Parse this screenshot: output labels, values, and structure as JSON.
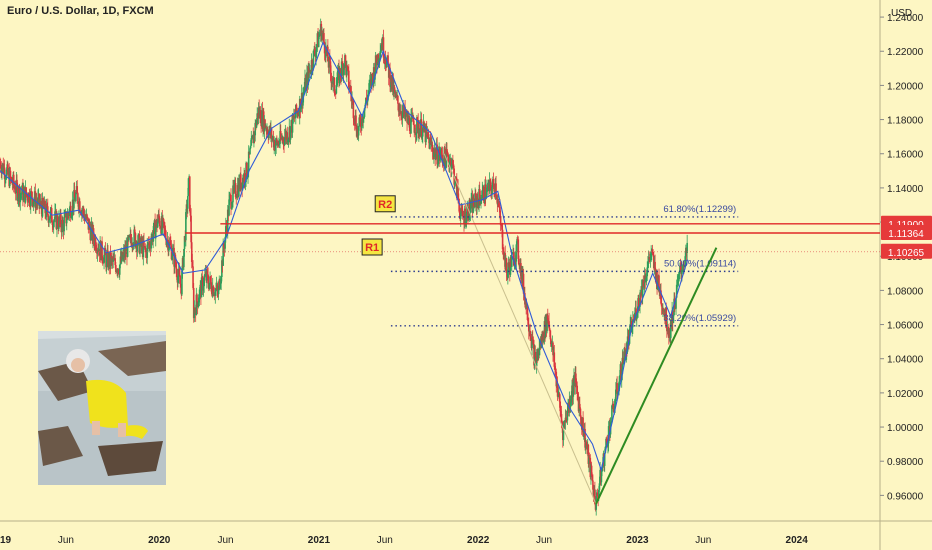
{
  "title": "Euro / U.S. Dollar, 1D, FXCM",
  "colors": {
    "background": "#fdf6c3",
    "up_candle": "#2e9e5b",
    "down_candle": "#d9363e",
    "ma_line": "#2f5bd8",
    "resistance": "#e02828",
    "fib": "#2b3a8f",
    "trendline": "#2e8b22",
    "price_tag": "#e63a3a"
  },
  "chart_data": {
    "type": "line",
    "title": "Euro / U.S. Dollar, 1D, FXCM",
    "ylabel": "USD",
    "ylim": [
      0.945,
      1.25
    ],
    "y_ticks": [
      0.96,
      0.98,
      1.0,
      1.02,
      1.04,
      1.06,
      1.08,
      1.1,
      1.12,
      1.14,
      1.16,
      1.18,
      1.2,
      1.22,
      1.24
    ],
    "y_tick_labels": [
      "0.96000",
      "0.98000",
      "1.00000",
      "1.02000",
      "1.04000",
      "1.06000",
      "1.08000",
      "1.10000",
      "1.12000",
      "1.14000",
      "1.16000",
      "1.18000",
      "1.20000",
      "1.22000",
      "1.24000"
    ],
    "x_range": [
      "2019-01-01",
      "2024-07-10"
    ],
    "x_ticks": [
      {
        "date": "2019-01-01",
        "label": "19"
      },
      {
        "date": "2019-06-01",
        "label": "Jun"
      },
      {
        "date": "2020-01-01",
        "label": "2020"
      },
      {
        "date": "2020-06-01",
        "label": "Jun"
      },
      {
        "date": "2021-01-01",
        "label": "2021"
      },
      {
        "date": "2021-06-01",
        "label": "Jun"
      },
      {
        "date": "2022-01-01",
        "label": "2022"
      },
      {
        "date": "2022-06-01",
        "label": "Jun"
      },
      {
        "date": "2023-01-01",
        "label": "2023"
      },
      {
        "date": "2023-06-01",
        "label": "Jun"
      },
      {
        "date": "2024-01-01",
        "label": "2024"
      }
    ],
    "series": [
      {
        "type": "candlestick-approx",
        "points": [
          [
            "2019-01-01",
            1.155
          ],
          [
            "2019-02-10",
            1.138
          ],
          [
            "2019-03-15",
            1.135
          ],
          [
            "2019-04-20",
            1.125
          ],
          [
            "2019-05-25",
            1.118
          ],
          [
            "2019-06-25",
            1.136
          ],
          [
            "2019-08-01",
            1.112
          ],
          [
            "2019-09-01",
            1.098
          ],
          [
            "2019-10-01",
            1.094
          ],
          [
            "2019-11-01",
            1.112
          ],
          [
            "2019-12-01",
            1.102
          ],
          [
            "2019-12-31",
            1.122
          ],
          [
            "2020-02-01",
            1.102
          ],
          [
            "2020-02-20",
            1.081
          ],
          [
            "2020-03-09",
            1.145
          ],
          [
            "2020-03-20",
            1.068
          ],
          [
            "2020-04-15",
            1.088
          ],
          [
            "2020-05-15",
            1.078
          ],
          [
            "2020-06-10",
            1.132
          ],
          [
            "2020-07-20",
            1.15
          ],
          [
            "2020-08-15",
            1.185
          ],
          [
            "2020-09-25",
            1.165
          ],
          [
            "2020-10-25",
            1.173
          ],
          [
            "2020-11-20",
            1.19
          ],
          [
            "2021-01-06",
            1.233
          ],
          [
            "2021-02-05",
            1.198
          ],
          [
            "2021-03-01",
            1.215
          ],
          [
            "2021-03-31",
            1.172
          ],
          [
            "2021-05-25",
            1.226
          ],
          [
            "2021-06-25",
            1.192
          ],
          [
            "2021-07-25",
            1.178
          ],
          [
            "2021-08-25",
            1.175
          ],
          [
            "2021-09-25",
            1.16
          ],
          [
            "2021-11-01",
            1.156
          ],
          [
            "2021-11-24",
            1.122
          ],
          [
            "2021-12-20",
            1.13
          ],
          [
            "2022-01-10",
            1.136
          ],
          [
            "2022-02-10",
            1.142
          ],
          [
            "2022-03-07",
            1.09
          ],
          [
            "2022-04-01",
            1.105
          ],
          [
            "2022-05-12",
            1.037
          ],
          [
            "2022-06-10",
            1.065
          ],
          [
            "2022-07-14",
            0.998
          ],
          [
            "2022-08-10",
            1.028
          ],
          [
            "2022-09-05",
            0.99
          ],
          [
            "2022-09-28",
            0.955
          ],
          [
            "2022-10-25",
            0.995
          ],
          [
            "2022-11-30",
            1.04
          ],
          [
            "2022-12-31",
            1.07
          ],
          [
            "2023-02-01",
            1.102
          ],
          [
            "2023-03-15",
            1.055
          ],
          [
            "2023-04-10",
            1.092
          ],
          [
            "2023-04-26",
            1.1026
          ]
        ]
      },
      {
        "type": "moving-average",
        "points": [
          [
            "2019-01-01",
            1.15
          ],
          [
            "2019-03-01",
            1.137
          ],
          [
            "2019-05-01",
            1.124
          ],
          [
            "2019-07-01",
            1.127
          ],
          [
            "2019-09-01",
            1.102
          ],
          [
            "2019-11-01",
            1.106
          ],
          [
            "2020-01-10",
            1.113
          ],
          [
            "2020-02-25",
            1.09
          ],
          [
            "2020-04-15",
            1.092
          ],
          [
            "2020-06-01",
            1.11
          ],
          [
            "2020-07-25",
            1.15
          ],
          [
            "2020-09-15",
            1.175
          ],
          [
            "2020-11-15",
            1.185
          ],
          [
            "2021-01-10",
            1.225
          ],
          [
            "2021-03-05",
            1.2
          ],
          [
            "2021-04-10",
            1.182
          ],
          [
            "2021-05-28",
            1.22
          ],
          [
            "2021-07-20",
            1.185
          ],
          [
            "2021-09-15",
            1.172
          ],
          [
            "2021-11-20",
            1.13
          ],
          [
            "2022-01-10",
            1.133
          ],
          [
            "2022-02-15",
            1.138
          ],
          [
            "2022-03-20",
            1.1
          ],
          [
            "2022-05-15",
            1.055
          ],
          [
            "2022-07-20",
            1.015
          ],
          [
            "2022-09-20",
            0.99
          ],
          [
            "2022-10-10",
            0.975
          ],
          [
            "2022-11-15",
            1.015
          ],
          [
            "2022-12-20",
            1.06
          ],
          [
            "2023-02-05",
            1.09
          ],
          [
            "2023-03-18",
            1.065
          ],
          [
            "2023-04-26",
            1.098
          ]
        ]
      }
    ],
    "resistance_lines": [
      {
        "label": "R1",
        "value": 1.1136,
        "from": "2020-03-01"
      },
      {
        "label": "R2",
        "value": 1.119,
        "from": "2020-05-20"
      }
    ],
    "fib_levels": [
      {
        "label": "61.80%(1.12299)",
        "value": 1.12299
      },
      {
        "label": "50.00%(1.09114)",
        "value": 1.09114
      },
      {
        "label": "38.20%(1.05929)",
        "value": 1.05929
      }
    ],
    "fib_from": "2021-06-15",
    "fib_to": "2023-08-20",
    "retracement_line": {
      "from": [
        "2021-10-15",
        1.16
      ],
      "to": [
        "2022-09-28",
        0.955
      ]
    },
    "trendline": {
      "from": [
        "2022-09-28",
        0.955
      ],
      "to": [
        "2023-07-01",
        1.105
      ]
    },
    "price_tags": [
      {
        "value": 1.119,
        "label": "1.11900"
      },
      {
        "value": 1.1136,
        "label": "1.11364"
      },
      {
        "value": 1.1026,
        "label": "1.10265"
      }
    ],
    "last_price": 1.1026
  }
}
